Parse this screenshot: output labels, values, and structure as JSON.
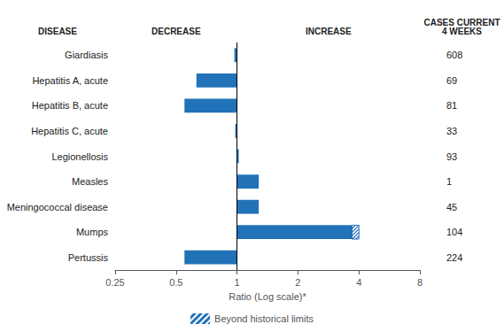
{
  "chart_data": {
    "type": "bar",
    "orientation": "horizontal",
    "log": "x",
    "categories": [
      "Giardiasis",
      "Hepatitis A, acute",
      "Hepatitis B, acute",
      "Hepatitis C, acute",
      "Legionellosis",
      "Measles",
      "Meningococcal disease",
      "Mumps",
      "Pertussis"
    ],
    "values": [
      0.97,
      0.63,
      0.55,
      0.98,
      1.02,
      1.28,
      1.28,
      4.0,
      0.55
    ],
    "beyond_limit_start": [
      null,
      null,
      null,
      null,
      null,
      null,
      null,
      3.7,
      null
    ],
    "legend_label": "Beyond historical limits",
    "cases": [
      608,
      69,
      81,
      33,
      93,
      1,
      45,
      104,
      224
    ],
    "headers": {
      "disease": "DISEASE",
      "decrease": "DECREASE",
      "increase": "INCREASE",
      "cases": "CASES CURRENT\n4 WEEKS"
    },
    "xlabel": "Ratio (Log scale)*",
    "xlim": [
      0.25,
      8
    ],
    "xticks": [
      0.25,
      0.5,
      1,
      2,
      4,
      8
    ],
    "baseline": 1,
    "color": "#2272b8",
    "grid": false,
    "legend": "bottom"
  }
}
